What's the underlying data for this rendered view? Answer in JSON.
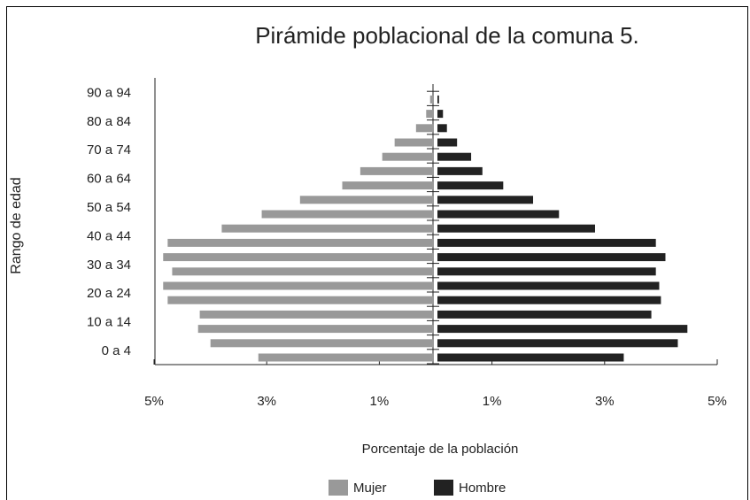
{
  "chart_data": {
    "type": "pyramid",
    "title": "Pirámide poblacional de la comuna 5.",
    "x_label": "Porcentaje de la población",
    "y_label": "Rango de edad",
    "categories": [
      "0 a 4",
      null,
      "10 a 14",
      null,
      "20 a 24",
      null,
      "30 a 34",
      null,
      "40 a 44",
      null,
      "50 a 54",
      null,
      "60 a 64",
      null,
      "70 a 74",
      null,
      "80 a 84",
      null,
      "90 a 94",
      null
    ],
    "series": [
      {
        "name": "Mujer",
        "color": "#999999",
        "values": [
          3.18,
          4.03,
          4.25,
          4.22,
          4.79,
          4.87,
          4.71,
          4.87,
          4.79,
          3.83,
          3.12,
          2.44,
          1.69,
          1.37,
          0.98,
          0.76,
          0.38,
          0.2,
          0.13,
          0.06
        ]
      },
      {
        "name": "Hombre",
        "color": "#222222",
        "values": [
          3.34,
          4.3,
          4.47,
          3.83,
          4.0,
          3.97,
          3.91,
          4.08,
          3.91,
          2.83,
          2.19,
          1.73,
          1.2,
          0.83,
          0.63,
          0.38,
          0.2,
          0.13,
          0.06,
          0.02
        ]
      }
    ],
    "xlim": [
      -5,
      5
    ],
    "xticks": [
      {
        "value": -5,
        "label": "5%"
      },
      {
        "value": -3,
        "label": "3%"
      },
      {
        "value": -1,
        "label": "1%"
      },
      {
        "value": 1,
        "label": "1%"
      },
      {
        "value": 3,
        "label": "3%"
      },
      {
        "value": 5,
        "label": "5%"
      }
    ],
    "legend": "bottom"
  }
}
